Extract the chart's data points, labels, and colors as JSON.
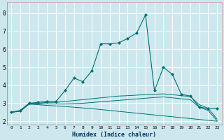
{
  "xlabel": "Humidex (Indice chaleur)",
  "bg_color": "#cce8ee",
  "grid_color": "#ffffff",
  "line_color": "#007070",
  "xlim": [
    -0.5,
    23.5
  ],
  "ylim": [
    1.8,
    8.6
  ],
  "xtick_labels": [
    "0",
    "1",
    "2",
    "3",
    "4",
    "5",
    "6",
    "7",
    "8",
    "9",
    "10",
    "11",
    "12",
    "13",
    "14",
    "15",
    "16",
    "17",
    "18",
    "19",
    "20",
    "21",
    "22",
    "23"
  ],
  "ytick_labels": [
    "2",
    "3",
    "4",
    "5",
    "6",
    "7",
    "8"
  ],
  "ytick_vals": [
    2,
    3,
    4,
    5,
    6,
    7,
    8
  ],
  "series_main": [
    2.5,
    2.6,
    3.0,
    3.05,
    3.1,
    3.1,
    3.7,
    4.4,
    4.2,
    4.8,
    6.3,
    6.3,
    6.35,
    6.6,
    6.9,
    7.9,
    3.7,
    5.0,
    4.6,
    3.5,
    3.4,
    2.8,
    2.7,
    2.7
  ],
  "series_line1": [
    2.5,
    2.58,
    3.0,
    3.0,
    3.05,
    3.05,
    3.1,
    3.15,
    3.2,
    3.25,
    3.3,
    3.35,
    3.4,
    3.42,
    3.45,
    3.48,
    3.5,
    3.52,
    3.48,
    3.42,
    3.38,
    2.92,
    2.72,
    2.12
  ],
  "series_line2": [
    2.5,
    2.57,
    2.98,
    2.98,
    2.97,
    2.96,
    2.96,
    2.98,
    3.0,
    3.04,
    3.08,
    3.12,
    3.16,
    3.2,
    3.24,
    3.28,
    3.32,
    3.35,
    3.3,
    3.25,
    3.2,
    2.78,
    2.6,
    2.02
  ],
  "series_line3": [
    2.5,
    2.55,
    2.95,
    2.92,
    2.88,
    2.85,
    2.82,
    2.78,
    2.74,
    2.7,
    2.65,
    2.6,
    2.55,
    2.5,
    2.45,
    2.4,
    2.35,
    2.3,
    2.25,
    2.2,
    2.15,
    2.1,
    2.05,
    2.0
  ]
}
